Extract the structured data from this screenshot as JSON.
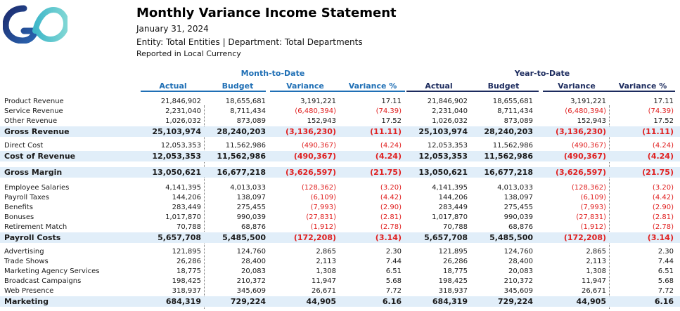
{
  "report": {
    "title": "Monthly Variance Income Statement",
    "date": "January 31, 2024",
    "entity_line": "Entity: Total Entities | Department: Total Departments",
    "currency_line": "Reported in Local Currency"
  },
  "colors": {
    "mtd_accent": "#1f6fb5",
    "ytd_accent": "#1c2b5e",
    "negative": "#e02020",
    "total_band": "#e1eef9"
  },
  "groups": {
    "mtd": "Month-to-Date",
    "ytd": "Year-to-Date"
  },
  "columns": {
    "mtd": [
      "Actual",
      "Budget",
      "Variance",
      "Variance %"
    ],
    "ytd": [
      "Actual",
      "Budget",
      "Variance",
      "Variance %"
    ]
  },
  "rows": [
    {
      "label": "Product Revenue",
      "type": "line",
      "values": [
        "21,846,902",
        "18,655,681",
        "3,191,221",
        "17.11",
        "21,846,902",
        "18,655,681",
        "3,191,221",
        "17.11"
      ]
    },
    {
      "label": "Service Revenue",
      "type": "line",
      "values": [
        "2,231,040",
        "8,711,434",
        "(6,480,394)",
        "(74.39)",
        "2,231,040",
        "8,711,434",
        "(6,480,394)",
        "(74.39)"
      ]
    },
    {
      "label": "Other Revenue",
      "type": "line",
      "values": [
        "1,026,032",
        "873,089",
        "152,943",
        "17.52",
        "1,026,032",
        "873,089",
        "152,943",
        "17.52"
      ]
    },
    {
      "label": "Gross Revenue",
      "type": "total",
      "values": [
        "25,103,974",
        "28,240,203",
        "(3,136,230)",
        "(11.11)",
        "25,103,974",
        "28,240,203",
        "(3,136,230)",
        "(11.11)"
      ]
    },
    {
      "type": "gap"
    },
    {
      "label": "Direct Cost",
      "type": "line",
      "values": [
        "12,053,353",
        "11,562,986",
        "(490,367)",
        "(4.24)",
        "12,053,353",
        "11,562,986",
        "(490,367)",
        "(4.24)"
      ]
    },
    {
      "label": "Cost of Revenue",
      "type": "total",
      "values": [
        "12,053,353",
        "11,562,986",
        "(490,367)",
        "(4.24)",
        "12,053,353",
        "11,562,986",
        "(490,367)",
        "(4.24)"
      ]
    },
    {
      "type": "gapbig"
    },
    {
      "label": "Gross Margin",
      "type": "total",
      "values": [
        "13,050,621",
        "16,677,218",
        "(3,626,597)",
        "(21.75)",
        "13,050,621",
        "16,677,218",
        "(3,626,597)",
        "(21.75)"
      ]
    },
    {
      "type": "gapbig"
    },
    {
      "label": "Employee Salaries",
      "type": "line",
      "values": [
        "4,141,395",
        "4,013,033",
        "(128,362)",
        "(3.20)",
        "4,141,395",
        "4,013,033",
        "(128,362)",
        "(3.20)"
      ]
    },
    {
      "label": "Payroll Taxes",
      "type": "line",
      "values": [
        "144,206",
        "138,097",
        "(6,109)",
        "(4.42)",
        "144,206",
        "138,097",
        "(6,109)",
        "(4.42)"
      ]
    },
    {
      "label": "Benefits",
      "type": "line",
      "values": [
        "283,449",
        "275,455",
        "(7,993)",
        "(2.90)",
        "283,449",
        "275,455",
        "(7,993)",
        "(2.90)"
      ]
    },
    {
      "label": "Bonuses",
      "type": "line",
      "values": [
        "1,017,870",
        "990,039",
        "(27,831)",
        "(2.81)",
        "1,017,870",
        "990,039",
        "(27,831)",
        "(2.81)"
      ]
    },
    {
      "label": "Retirement Match",
      "type": "line",
      "values": [
        "70,788",
        "68,876",
        "(1,912)",
        "(2.78)",
        "70,788",
        "68,876",
        "(1,912)",
        "(2.78)"
      ]
    },
    {
      "label": "Payroll Costs",
      "type": "total",
      "values": [
        "5,657,708",
        "5,485,500",
        "(172,208)",
        "(3.14)",
        "5,657,708",
        "5,485,500",
        "(172,208)",
        "(3.14)"
      ]
    },
    {
      "type": "gap"
    },
    {
      "label": "Advertising",
      "type": "line",
      "values": [
        "121,895",
        "124,760",
        "2,865",
        "2.30",
        "121,895",
        "124,760",
        "2,865",
        "2.30"
      ]
    },
    {
      "label": "Trade Shows",
      "type": "line",
      "values": [
        "26,286",
        "28,400",
        "2,113",
        "7.44",
        "26,286",
        "28,400",
        "2,113",
        "7.44"
      ]
    },
    {
      "label": "Marketing Agency Services",
      "type": "line",
      "values": [
        "18,775",
        "20,083",
        "1,308",
        "6.51",
        "18,775",
        "20,083",
        "1,308",
        "6.51"
      ]
    },
    {
      "label": "Broadcast Campaigns",
      "type": "line",
      "values": [
        "198,425",
        "210,372",
        "11,947",
        "5.68",
        "198,425",
        "210,372",
        "11,947",
        "5.68"
      ]
    },
    {
      "label": "Web Presence",
      "type": "line",
      "values": [
        "318,937",
        "345,609",
        "26,671",
        "7.72",
        "318,937",
        "345,609",
        "26,671",
        "7.72"
      ]
    },
    {
      "label": "Marketing",
      "type": "total",
      "values": [
        "684,319",
        "729,224",
        "44,905",
        "6.16",
        "684,319",
        "729,224",
        "44,905",
        "6.16"
      ]
    }
  ]
}
